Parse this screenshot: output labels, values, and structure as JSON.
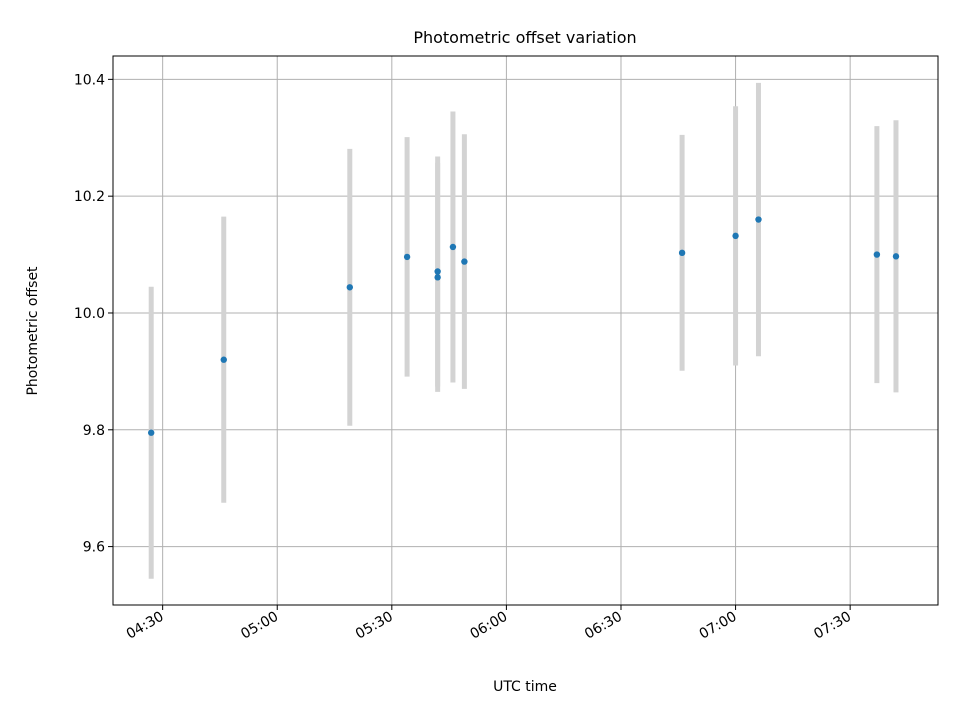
{
  "chart_data": {
    "type": "scatter",
    "title": "Photometric offset variation",
    "xlabel": "UTC time",
    "ylabel": "Photometric offset",
    "xlim": [
      "04:17",
      "07:53"
    ],
    "ylim": [
      9.5,
      10.44
    ],
    "grid": true,
    "x_ticks": [
      "04:30",
      "05:00",
      "05:30",
      "06:00",
      "06:30",
      "07:00",
      "07:30"
    ],
    "y_ticks": [
      9.6,
      9.8,
      10.0,
      10.2,
      10.4
    ],
    "y_tick_labels": [
      "9.6",
      "9.8",
      "10.0",
      "10.2",
      "10.4"
    ],
    "series": [
      {
        "marker_color": "#1f77b4",
        "errorbar_color": "#d3d3d3",
        "points": [
          {
            "x": "04:27",
            "y": 9.795,
            "err": 0.25
          },
          {
            "x": "04:46",
            "y": 9.92,
            "err": 0.245
          },
          {
            "x": "05:19",
            "y": 10.044,
            "err": 0.237
          },
          {
            "x": "05:34",
            "y": 10.096,
            "err": 0.205
          },
          {
            "x": "05:42",
            "y": 10.061,
            "err": 0.196
          },
          {
            "x": "05:42",
            "y": 10.071,
            "err": 0.197
          },
          {
            "x": "05:46",
            "y": 10.113,
            "err": 0.232
          },
          {
            "x": "05:49",
            "y": 10.088,
            "err": 0.218
          },
          {
            "x": "06:46",
            "y": 10.103,
            "err": 0.202
          },
          {
            "x": "07:00",
            "y": 10.132,
            "err": 0.222
          },
          {
            "x": "07:06",
            "y": 10.16,
            "err": 0.234
          },
          {
            "x": "07:37",
            "y": 10.1,
            "err": 0.22
          },
          {
            "x": "07:42",
            "y": 10.097,
            "err": 0.233
          }
        ]
      }
    ]
  }
}
